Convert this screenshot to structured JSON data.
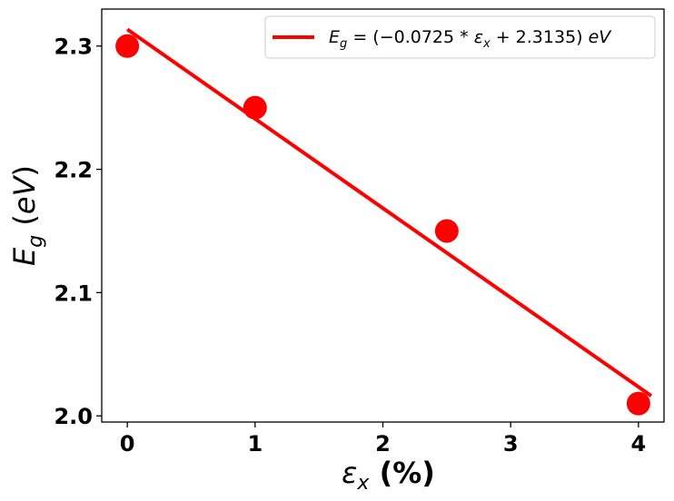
{
  "chart_data": {
    "type": "scatter",
    "xlabel": "εx (%)",
    "ylabel": "Eg (eV)",
    "xlim": [
      -0.2,
      4.2
    ],
    "ylim": [
      1.995,
      2.33
    ],
    "x_ticks": [
      0,
      1,
      2,
      3,
      4
    ],
    "x_tick_labels": [
      "0",
      "1",
      "2",
      "3",
      "4"
    ],
    "y_ticks": [
      2.0,
      2.1,
      2.2,
      2.3
    ],
    "y_tick_labels": [
      "2.0",
      "2.1",
      "2.2",
      "2.3"
    ],
    "grid": false,
    "legend_position": "top-right",
    "series": [
      {
        "kind": "scatter",
        "color": "#ff0000",
        "x": [
          0,
          1,
          2.5,
          4
        ],
        "y": [
          2.3,
          2.25,
          2.15,
          2.01
        ]
      },
      {
        "kind": "line",
        "name": "Eg = (−0.0725 * εx + 2.3135) eV",
        "color": "#ff0000",
        "slope": -0.0725,
        "intercept": 2.3135,
        "x_range": [
          0,
          4.1
        ]
      }
    ]
  }
}
